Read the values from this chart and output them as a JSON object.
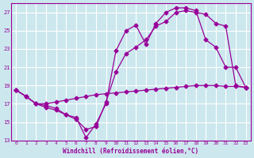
{
  "xlabel": "Windchill (Refroidissement éolien,°C)",
  "background_color": "#cce8ee",
  "grid_color": "#ffffff",
  "line_color": "#990099",
  "xlim": [
    -0.5,
    23.5
  ],
  "ylim": [
    13,
    28
  ],
  "yticks": [
    13,
    15,
    17,
    19,
    21,
    23,
    25,
    27
  ],
  "xticks": [
    0,
    1,
    2,
    3,
    4,
    5,
    6,
    7,
    8,
    9,
    10,
    11,
    12,
    13,
    14,
    15,
    16,
    17,
    18,
    19,
    20,
    21,
    22,
    23
  ],
  "line1_x": [
    0,
    1,
    2,
    3,
    4,
    5,
    6,
    7,
    8,
    9,
    10,
    11,
    12,
    13,
    14,
    15,
    16,
    17,
    18,
    19,
    20,
    21,
    22,
    23
  ],
  "line1_y": [
    18.5,
    17.8,
    17.0,
    17.0,
    17.2,
    17.4,
    17.6,
    17.8,
    18.0,
    18.1,
    18.2,
    18.3,
    18.4,
    18.5,
    18.6,
    18.7,
    18.8,
    18.9,
    19.0,
    19.0,
    19.0,
    18.9,
    18.9,
    18.8
  ],
  "line2_x": [
    0,
    1,
    2,
    3,
    4,
    5,
    6,
    7,
    8,
    9,
    10,
    11,
    12,
    13,
    14,
    15,
    16,
    17,
    18,
    19,
    20,
    21,
    22,
    23
  ],
  "line2_y": [
    18.5,
    17.8,
    17.0,
    16.6,
    16.3,
    15.8,
    15.3,
    14.2,
    14.5,
    17.2,
    20.5,
    22.5,
    23.2,
    24.0,
    25.5,
    26.0,
    27.0,
    27.2,
    27.0,
    26.8,
    25.8,
    25.5,
    19.0,
    18.8
  ],
  "line3_x": [
    0,
    1,
    2,
    3,
    4,
    5,
    6,
    7,
    8,
    9,
    10,
    11,
    12,
    13,
    14,
    15,
    16,
    17,
    18,
    19,
    20,
    21,
    22,
    23
  ],
  "line3_y": [
    18.5,
    17.8,
    17.0,
    16.8,
    16.5,
    15.8,
    15.5,
    13.3,
    14.8,
    17.0,
    22.8,
    25.0,
    25.6,
    23.5,
    25.8,
    27.0,
    27.5,
    27.5,
    27.2,
    24.0,
    23.2,
    21.0,
    21.0,
    18.8
  ]
}
